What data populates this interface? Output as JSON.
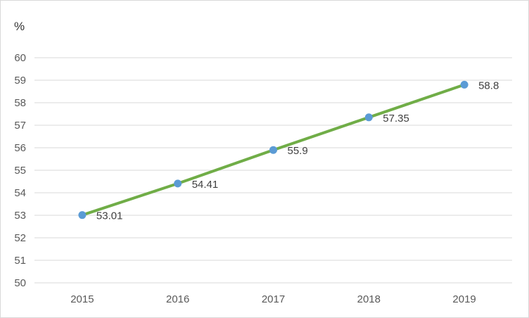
{
  "chart_data": {
    "type": "line",
    "unit_label": "%",
    "title": "",
    "xlabel": "",
    "ylabel": "",
    "categories": [
      "2015",
      "2016",
      "2017",
      "2018",
      "2019"
    ],
    "series": [
      {
        "values": [
          53.01,
          54.41,
          55.9,
          57.35,
          58.8
        ],
        "data_labels": [
          "53.01",
          "54.41",
          "55.9",
          "57.35",
          "58.8"
        ],
        "line_color": "#70ad47",
        "marker_color": "#5b9bd5"
      }
    ],
    "ylim": [
      50,
      60
    ],
    "yticks": [
      "50",
      "51",
      "52",
      "53",
      "54",
      "55",
      "56",
      "57",
      "58",
      "59",
      "60"
    ],
    "grid": true,
    "grid_color": "#d9d9d9",
    "legend": "none"
  }
}
